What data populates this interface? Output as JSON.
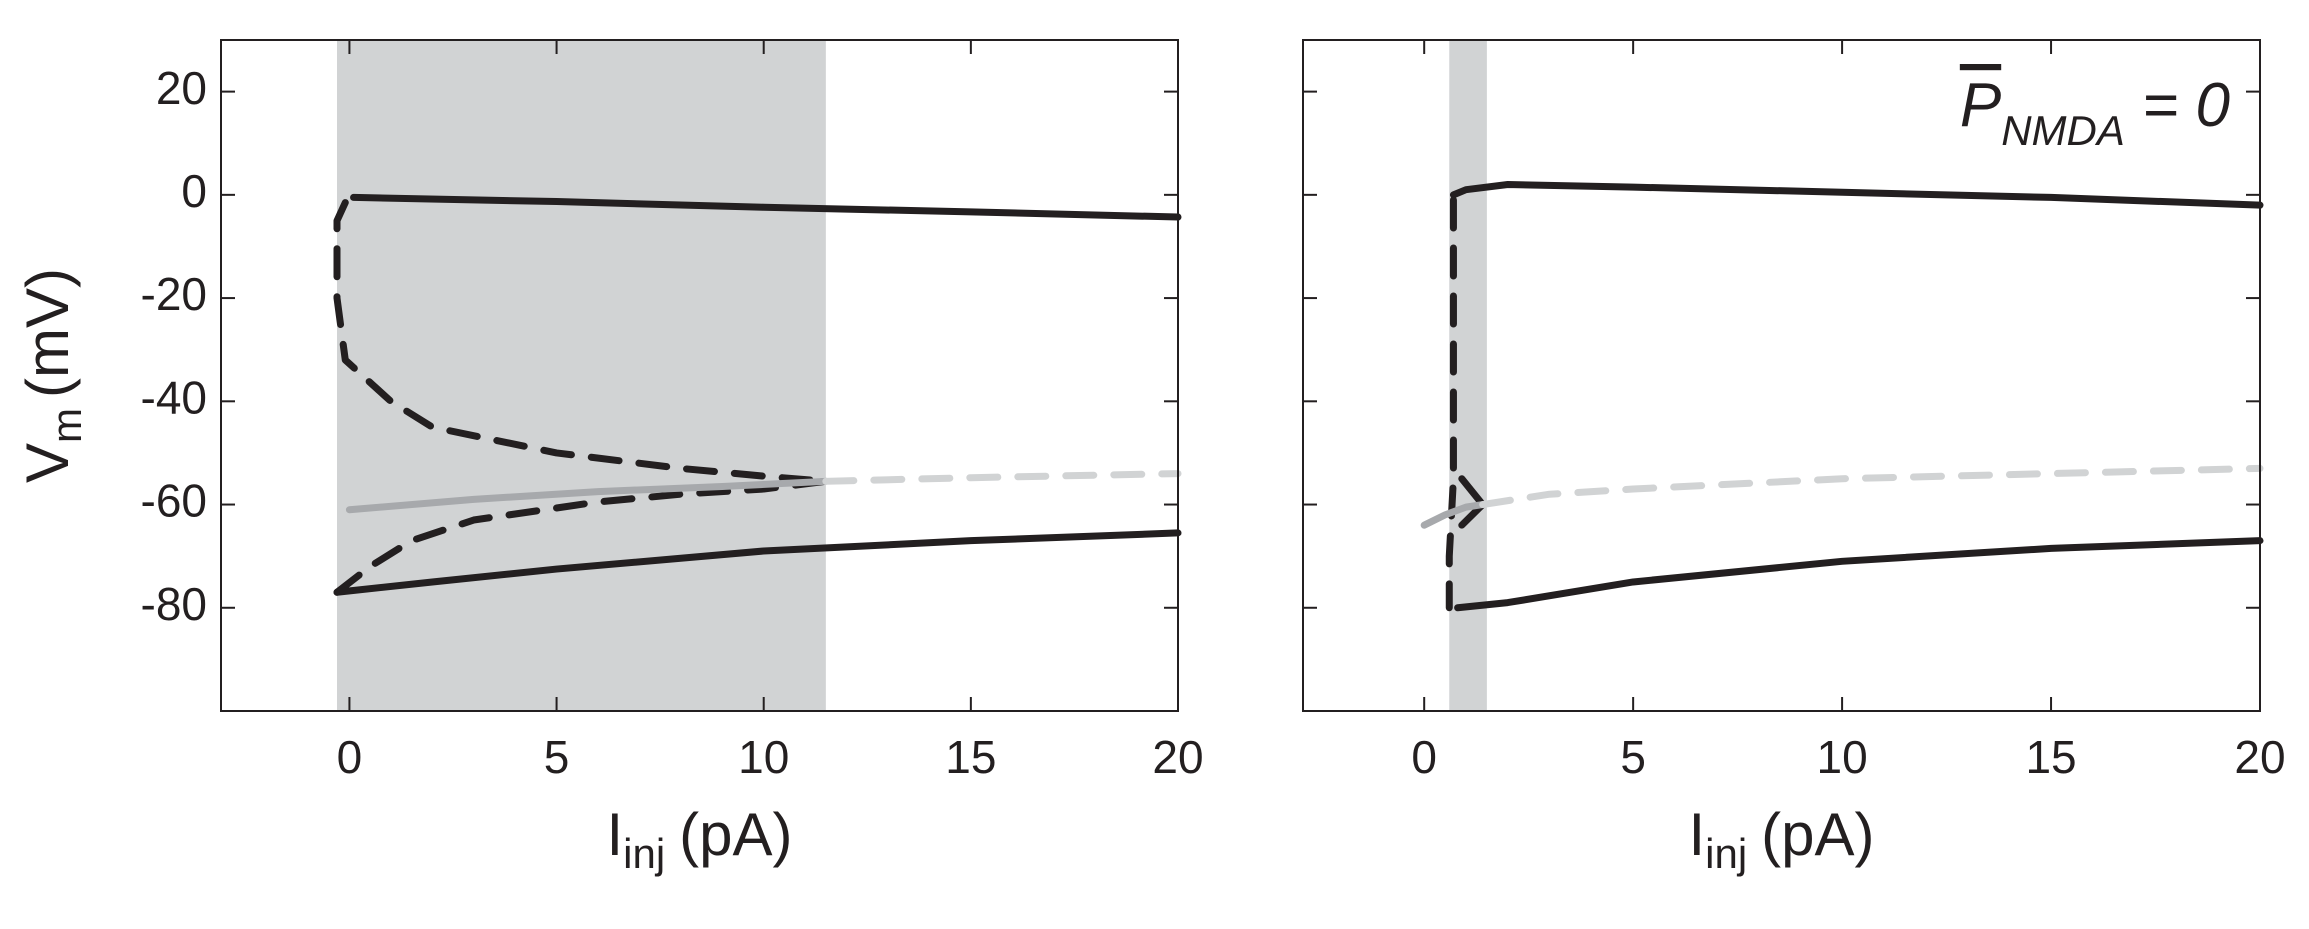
{
  "chart_data": [
    {
      "type": "line",
      "xlim": [
        -3.1,
        20
      ],
      "ylim": [
        -100,
        30
      ],
      "xticks": [
        0,
        5,
        10,
        15,
        20
      ],
      "yticks": [
        -80,
        -60,
        -40,
        -20,
        0,
        20
      ],
      "xlabel": {
        "main": "I",
        "sub": "inj",
        "unit": "(pA)"
      },
      "ylabel": {
        "main": "V",
        "sub": "m",
        "unit": "(mV)"
      },
      "shaded_region": [
        -0.3,
        11.5
      ],
      "shade_color": "#d1d3d4",
      "series": [
        {
          "color": "#231f20",
          "dash": false,
          "x": [
            0.1,
            5,
            10,
            15,
            20
          ],
          "values": [
            -0.5,
            -1.3,
            -2.4,
            -3.3,
            -4.3
          ]
        },
        {
          "color": "#231f20",
          "dash": true,
          "x": [
            -0.1,
            -0.3,
            -0.3,
            -0.1,
            1,
            2,
            5,
            8,
            10,
            11.5
          ],
          "values": [
            -1.5,
            -5,
            -20,
            -32,
            -40,
            -45,
            -50,
            -53,
            -54.5,
            -55.5
          ]
        },
        {
          "color": "#231f20",
          "dash": true,
          "x": [
            -0.3,
            0.5,
            1.5,
            3,
            6,
            8,
            10,
            11.5
          ],
          "values": [
            -77,
            -72,
            -67,
            -63,
            -59.5,
            -58,
            -57,
            -55.5
          ]
        },
        {
          "color": "#a7a9ac",
          "dash": false,
          "x": [
            0,
            3,
            6,
            9,
            11.5
          ],
          "values": [
            -61,
            -59,
            -57.5,
            -56.5,
            -55.5
          ]
        },
        {
          "color": "#d1d3d4",
          "dash": true,
          "x": [
            11.5,
            15,
            20
          ],
          "values": [
            -55.5,
            -54.8,
            -54
          ]
        },
        {
          "color": "#231f20",
          "dash": false,
          "x": [
            -0.3,
            2,
            5,
            10,
            15,
            20
          ],
          "values": [
            -77,
            -75,
            -72.5,
            -69,
            -67,
            -65.5
          ]
        }
      ]
    },
    {
      "type": "line",
      "xlim": [
        -2.9,
        20
      ],
      "ylim": [
        -100,
        30
      ],
      "xticks": [
        0,
        5,
        10,
        15,
        20
      ],
      "yticks": [
        -80,
        -60,
        -40,
        -20,
        0,
        20
      ],
      "ytick_labels": false,
      "xlabel": {
        "main": "I",
        "sub": "inj",
        "unit": "(pA)"
      },
      "annotation": {
        "main": "P",
        "sub": "NMDA",
        "rest": " = 0"
      },
      "shaded_region": [
        0.6,
        1.5
      ],
      "shade_color": "#d1d3d4",
      "series": [
        {
          "color": "#231f20",
          "dash": false,
          "x": [
            0.7,
            1,
            2,
            5,
            10,
            15,
            20
          ],
          "values": [
            0,
            1,
            2,
            1.5,
            0.5,
            -0.5,
            -2
          ]
        },
        {
          "color": "#231f20",
          "dash": true,
          "x": [
            0.7,
            0.7,
            0.7,
            0.6,
            0.6
          ],
          "values": [
            -1,
            -30,
            -55,
            -70,
            -80
          ]
        },
        {
          "color": "#231f20",
          "dash": false,
          "x": [
            0.9,
            1.4,
            0.9
          ],
          "values": [
            -55,
            -60,
            -64
          ]
        },
        {
          "color": "#a7a9ac",
          "dash": false,
          "x": [
            0,
            0.5,
            1,
            1.4
          ],
          "values": [
            -64,
            -62,
            -60.5,
            -60
          ]
        },
        {
          "color": "#d1d3d4",
          "dash": true,
          "x": [
            1.4,
            3,
            5,
            10,
            15,
            20
          ],
          "values": [
            -60,
            -58,
            -57,
            -55,
            -54,
            -53
          ]
        },
        {
          "color": "#231f20",
          "dash": false,
          "x": [
            0.8,
            2,
            5,
            10,
            15,
            20
          ],
          "values": [
            -80,
            -79,
            -75,
            -71,
            -68.5,
            -67
          ]
        }
      ]
    }
  ]
}
